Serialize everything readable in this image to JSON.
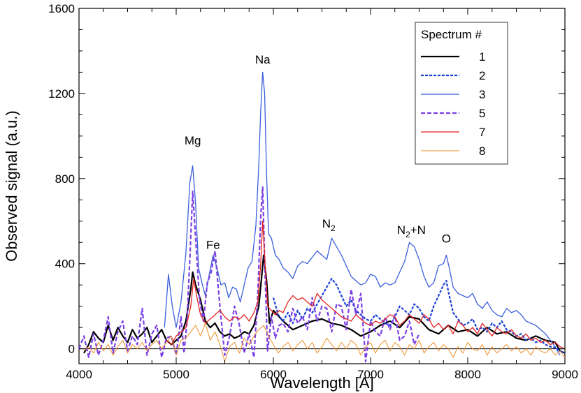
{
  "chart_data": {
    "type": "line",
    "title": "",
    "xlabel": "Wavelength [A]",
    "ylabel": "Observed signal (a.u.)",
    "xlim": [
      4000,
      9000
    ],
    "ylim": [
      -70,
      1600
    ],
    "x_ticks": [
      4000,
      5000,
      6000,
      7000,
      8000,
      9000
    ],
    "y_ticks": [
      0,
      400,
      800,
      1200,
      1600
    ],
    "x_tick_labels": [
      "4000",
      "5000",
      "6000",
      "7000",
      "8000",
      "9000"
    ],
    "y_tick_labels": [
      "0",
      "400",
      "800",
      "1200",
      "1600"
    ],
    "legend": {
      "title": "Spectrum #",
      "position": "top-right"
    },
    "annotations": [
      {
        "label": "Mg",
        "x": 5170,
        "y": 960
      },
      {
        "label": "Na",
        "x": 5890,
        "y": 1340
      },
      {
        "label": "Fe",
        "x": 5380,
        "y": 470
      },
      {
        "label": "N",
        "sub": "2",
        "x": 6570,
        "y": 570
      },
      {
        "label": "N",
        "sub": "2",
        "suffix": "+N",
        "x": 7420,
        "y": 540
      },
      {
        "label": "O",
        "x": 7780,
        "y": 500
      }
    ],
    "series": [
      {
        "name": "1",
        "color": "#000000",
        "width": 2.2,
        "dash": "",
        "x": [
          4050,
          4100,
          4150,
          4200,
          4250,
          4300,
          4350,
          4400,
          4450,
          4500,
          4550,
          4600,
          4650,
          4700,
          4750,
          4800,
          4850,
          4900,
          4950,
          5000,
          5050,
          5100,
          5150,
          5170,
          5200,
          5250,
          5300,
          5350,
          5400,
          5450,
          5500,
          5550,
          5600,
          5650,
          5700,
          5750,
          5800,
          5850,
          5880,
          5900,
          5930,
          5960,
          6000,
          6100,
          6200,
          6300,
          6400,
          6500,
          6600,
          6700,
          6800,
          6900,
          7000,
          7100,
          7200,
          7300,
          7400,
          7500,
          7600,
          7700,
          7800,
          7900,
          8000,
          8100,
          8200,
          8300,
          8400,
          8500,
          8600,
          8700,
          8800,
          8900,
          8950,
          9000
        ],
        "y": [
          -20,
          20,
          80,
          50,
          30,
          110,
          40,
          100,
          60,
          30,
          90,
          50,
          70,
          100,
          30,
          60,
          90,
          40,
          20,
          40,
          60,
          130,
          280,
          360,
          300,
          230,
          130,
          100,
          120,
          80,
          60,
          70,
          50,
          60,
          80,
          70,
          110,
          200,
          340,
          440,
          320,
          120,
          180,
          130,
          90,
          110,
          130,
          140,
          120,
          110,
          90,
          60,
          80,
          110,
          130,
          100,
          150,
          140,
          90,
          70,
          110,
          80,
          90,
          60,
          100,
          70,
          80,
          50,
          40,
          60,
          40,
          30,
          -10,
          -20
        ]
      },
      {
        "name": "2",
        "color": "#1b3fd6",
        "width": 2.2,
        "dash": "4,2",
        "x": [
          6000,
          6050,
          6100,
          6150,
          6200,
          6250,
          6300,
          6350,
          6400,
          6450,
          6500,
          6550,
          6600,
          6650,
          6700,
          6750,
          6800,
          6850,
          6900,
          6950,
          7000,
          7050,
          7100,
          7150,
          7200,
          7250,
          7300,
          7350,
          7400,
          7450,
          7500,
          7550,
          7600,
          7650,
          7700,
          7750,
          7780,
          7800,
          7850,
          7900,
          7950,
          8000,
          8050,
          8100,
          8150,
          8200,
          8250,
          8300,
          8350,
          8400,
          8450,
          8500,
          8550,
          8600,
          8650,
          8700,
          8750,
          8800,
          8850,
          8900,
          8950,
          9000
        ],
        "y": [
          240,
          160,
          130,
          170,
          120,
          180,
          140,
          190,
          170,
          210,
          250,
          290,
          330,
          300,
          250,
          200,
          230,
          180,
          160,
          140,
          130,
          160,
          140,
          120,
          110,
          150,
          200,
          180,
          160,
          210,
          190,
          150,
          130,
          200,
          250,
          300,
          320,
          270,
          170,
          140,
          110,
          120,
          140,
          90,
          100,
          80,
          120,
          100,
          130,
          90,
          80,
          60,
          70,
          40,
          50,
          30,
          40,
          20,
          10,
          5,
          -10,
          -20
        ]
      },
      {
        "name": "3",
        "color": "#3b5fdc",
        "width": 1.3,
        "dash": "",
        "x": [
          4880,
          4920,
          4960,
          5000,
          5050,
          5100,
          5140,
          5170,
          5200,
          5230,
          5270,
          5300,
          5340,
          5380,
          5420,
          5460,
          5500,
          5540,
          5580,
          5620,
          5660,
          5700,
          5740,
          5780,
          5820,
          5850,
          5870,
          5890,
          5910,
          5930,
          5950,
          5980,
          6020,
          6060,
          6100,
          6150,
          6200,
          6250,
          6300,
          6350,
          6400,
          6450,
          6500,
          6550,
          6600,
          6650,
          6700,
          6750,
          6800,
          6850,
          6900,
          6950,
          7000,
          7050,
          7100,
          7150,
          7200,
          7250,
          7300,
          7350,
          7400,
          7450,
          7500,
          7550,
          7600,
          7650,
          7700,
          7750,
          7780,
          7810,
          7850,
          7900,
          7950,
          8000,
          8050,
          8100,
          8150,
          8200,
          8250,
          8300,
          8350,
          8400,
          8450,
          8500,
          8550,
          8600,
          8650,
          8700,
          8750,
          8800,
          8850,
          8900,
          8950
        ],
        "y": [
          100,
          350,
          200,
          100,
          220,
          450,
          780,
          860,
          680,
          380,
          300,
          250,
          350,
          440,
          380,
          300,
          310,
          240,
          290,
          280,
          220,
          300,
          380,
          410,
          580,
          860,
          1120,
          1300,
          1200,
          820,
          540,
          520,
          440,
          420,
          380,
          360,
          330,
          390,
          410,
          400,
          430,
          460,
          440,
          420,
          520,
          480,
          440,
          390,
          340,
          320,
          300,
          310,
          350,
          340,
          290,
          310,
          300,
          310,
          360,
          410,
          500,
          480,
          420,
          340,
          290,
          310,
          390,
          400,
          440,
          380,
          290,
          260,
          250,
          240,
          260,
          210,
          190,
          220,
          180,
          160,
          150,
          190,
          170,
          180,
          160,
          130,
          120,
          110,
          90,
          70,
          40,
          10,
          -30
        ]
      },
      {
        "name": "5",
        "color": "#7b3fe4",
        "width": 2.2,
        "dash": "6,3",
        "x": [
          4000,
          4050,
          4100,
          4150,
          4200,
          4250,
          4300,
          4350,
          4400,
          4450,
          4500,
          4550,
          4600,
          4650,
          4700,
          4750,
          4800,
          4850,
          4900,
          4950,
          5000,
          5050,
          5080,
          5110,
          5140,
          5170,
          5200,
          5240,
          5280,
          5320,
          5360,
          5400,
          5450,
          5500,
          5550,
          5600,
          5650,
          5700,
          5750,
          5800,
          5840,
          5870,
          5890,
          5910,
          5940,
          5980,
          6020,
          6060,
          6100,
          6150,
          6200,
          6250,
          6300,
          6350,
          6400,
          6450,
          6500,
          6550,
          6600,
          6650,
          6700,
          6750,
          6800,
          6850,
          6900,
          6950,
          7000,
          7050,
          7100,
          7150,
          7200,
          7250,
          7300,
          7350,
          7400,
          7450,
          7500
        ],
        "y": [
          0,
          60,
          -40,
          70,
          -30,
          40,
          150,
          -20,
          80,
          130,
          -10,
          60,
          20,
          190,
          -30,
          70,
          110,
          -40,
          50,
          60,
          -30,
          150,
          -20,
          120,
          420,
          740,
          520,
          230,
          130,
          310,
          360,
          460,
          200,
          -30,
          60,
          200,
          110,
          -20,
          70,
          -40,
          260,
          620,
          760,
          420,
          -10,
          150,
          50,
          110,
          120,
          80,
          190,
          120,
          150,
          90,
          240,
          130,
          200,
          190,
          80,
          210,
          200,
          90,
          280,
          160,
          260,
          -60,
          130,
          80,
          60,
          150,
          90,
          160,
          40,
          60,
          130,
          20,
          70
        ]
      },
      {
        "name": "7",
        "color": "#e32222",
        "width": 1.3,
        "dash": "",
        "x": [
          4900,
          4950,
          5000,
          5050,
          5100,
          5150,
          5180,
          5210,
          5250,
          5300,
          5350,
          5400,
          5450,
          5500,
          5550,
          5600,
          5650,
          5700,
          5750,
          5800,
          5840,
          5870,
          5890,
          5910,
          5940,
          5980,
          6020,
          6060,
          6100,
          6150,
          6200,
          6250,
          6300,
          6350,
          6400,
          6450,
          6500,
          6550,
          6600,
          6650,
          6700,
          6750,
          6800,
          6850,
          6900,
          6950,
          7000,
          7050,
          7100,
          7150,
          7200,
          7250,
          7300,
          7350,
          7400,
          7450,
          7500,
          7550,
          7600,
          7650,
          7700,
          7750,
          7800,
          7850,
          7900,
          7950,
          8000,
          8050,
          8100,
          8150,
          8200,
          8250,
          8300,
          8350,
          8400,
          8450,
          8500,
          8550,
          8600,
          8650,
          8700,
          8750,
          8800,
          8850,
          8900,
          8950,
          9000
        ],
        "y": [
          40,
          20,
          60,
          80,
          100,
          200,
          330,
          250,
          160,
          120,
          140,
          160,
          180,
          150,
          130,
          150,
          140,
          160,
          130,
          170,
          220,
          400,
          600,
          440,
          200,
          180,
          160,
          180,
          170,
          220,
          250,
          230,
          240,
          220,
          200,
          260,
          230,
          210,
          190,
          170,
          150,
          140,
          130,
          160,
          140,
          120,
          110,
          130,
          120,
          140,
          160,
          150,
          110,
          130,
          160,
          140,
          120,
          160,
          140,
          100,
          120,
          90,
          110,
          70,
          130,
          110,
          80,
          100,
          70,
          120,
          90,
          60,
          100,
          80,
          70,
          90,
          60,
          50,
          70,
          40,
          50,
          30,
          40,
          20,
          30,
          10,
          0
        ]
      },
      {
        "name": "8",
        "color": "#f0902a",
        "width": 1.0,
        "dash": "",
        "x": [
          4050,
          4100,
          4150,
          4200,
          4250,
          4300,
          4350,
          4400,
          4450,
          4500,
          4550,
          4600,
          4650,
          4700,
          4750,
          4800,
          4850,
          4900,
          4950,
          5000,
          5050,
          5100,
          5150,
          5200,
          5250,
          5300,
          5350,
          5400,
          5450,
          5500,
          5550,
          5600,
          5650,
          5700,
          5750,
          5800,
          5850,
          5900,
          5950,
          6000,
          6050,
          6100,
          6150,
          6200,
          6250,
          6300,
          6350,
          6400,
          6450,
          6500,
          6550,
          6600,
          6650,
          6700,
          6750,
          6800,
          6850,
          6900,
          6950,
          7000,
          7050,
          7100,
          7150,
          7200,
          7250,
          7300,
          7350,
          7400,
          7450,
          7500,
          7550,
          7600,
          7650,
          7700,
          7750,
          7800,
          7850,
          7900,
          7950,
          8000,
          8050,
          8100,
          8150,
          8200,
          8250,
          8300,
          8350,
          8400,
          8450,
          8500,
          8550,
          8600,
          8650,
          8700,
          8750,
          8800,
          8850,
          8900,
          8950,
          9000
        ],
        "y": [
          -10,
          10,
          -20,
          30,
          -10,
          20,
          -30,
          10,
          40,
          -20,
          20,
          0,
          30,
          -10,
          20,
          40,
          0,
          30,
          60,
          -30,
          40,
          50,
          80,
          110,
          60,
          120,
          40,
          80,
          20,
          -60,
          10,
          30,
          -20,
          50,
          20,
          60,
          90,
          110,
          60,
          20,
          -20,
          10,
          30,
          -10,
          20,
          40,
          0,
          30,
          -20,
          10,
          50,
          20,
          -10,
          30,
          0,
          40,
          20,
          -30,
          10,
          30,
          -20,
          20,
          40,
          -10,
          30,
          10,
          -30,
          20,
          0,
          40,
          -20,
          10,
          30,
          -10,
          20,
          0,
          -40,
          10,
          -20,
          30,
          0,
          -10,
          20,
          -30,
          10,
          -20,
          0,
          20,
          -10,
          10,
          -20,
          0,
          -30,
          10,
          -10,
          -20,
          0,
          -30,
          -10,
          -40
        ]
      }
    ]
  }
}
